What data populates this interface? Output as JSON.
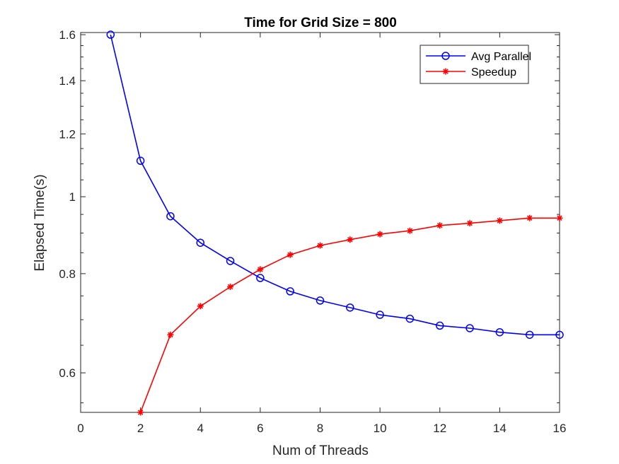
{
  "chart_data": {
    "type": "line",
    "title": "Time for Grid Size = 800",
    "xlabel": "Num of Threads",
    "ylabel": "Elapsed Time(s)",
    "xlim": [
      0,
      16
    ],
    "ylim": [
      0.535,
      1.61
    ],
    "y_scale": "log",
    "grid": false,
    "legend_position": "top-right",
    "xticks": [
      "0",
      "2",
      "4",
      "6",
      "8",
      "10",
      "12",
      "14",
      "16"
    ],
    "xtick_values": [
      0,
      2,
      4,
      6,
      8,
      10,
      12,
      14,
      16
    ],
    "yticks": [
      "0.6",
      "0.8",
      "1",
      "1.2",
      "1.4",
      "1.6"
    ],
    "ytick_values": [
      0.6,
      0.8,
      1.0,
      1.2,
      1.4,
      1.6
    ],
    "series": [
      {
        "name": "Avg Parallel",
        "color": "#0000ff",
        "marker": "circle",
        "x": [
          1,
          2,
          3,
          4,
          5,
          6,
          7,
          8,
          9,
          10,
          11,
          12,
          13,
          14,
          15,
          16
        ],
        "values": [
          1.6,
          1.11,
          0.945,
          0.875,
          0.83,
          0.79,
          0.76,
          0.74,
          0.725,
          0.71,
          0.702,
          0.688,
          0.683,
          0.675,
          0.67,
          0.67
        ]
      },
      {
        "name": "Speedup",
        "color": "#ff0000",
        "marker": "asterisk",
        "x": [
          2,
          3,
          4,
          5,
          6,
          7,
          8,
          9,
          10,
          11,
          12,
          13,
          14,
          15,
          16
        ],
        "values": [
          0.535,
          0.67,
          0.728,
          0.77,
          0.81,
          0.845,
          0.868,
          0.883,
          0.897,
          0.906,
          0.92,
          0.926,
          0.933,
          0.94,
          0.94
        ]
      }
    ]
  }
}
